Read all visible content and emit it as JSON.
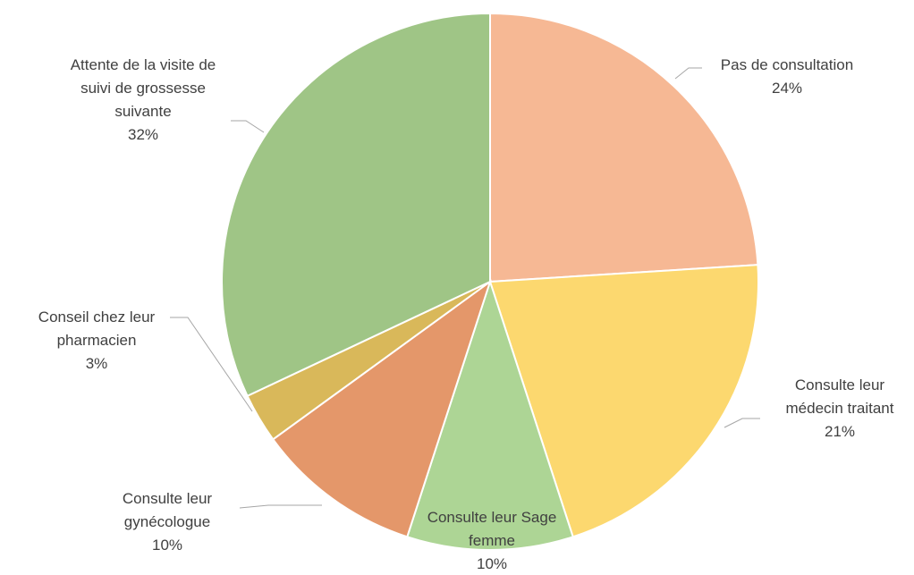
{
  "chart_data": {
    "type": "pie",
    "categories": [
      "Pas de consultation",
      "Consulte leur médecin traitant",
      "Consulte leur Sage femme",
      "Consulte leur gynécologue",
      "Conseil chez leur pharmacien",
      "Attente de la visite de suivi de grossesse suivante"
    ],
    "values": [
      24,
      21,
      10,
      10,
      3,
      32
    ],
    "value_labels": [
      "24%",
      "21%",
      "10%",
      "10%",
      "3%",
      "32%"
    ],
    "colors": [
      "#f6b894",
      "#fcd86f",
      "#add595",
      "#e4976a",
      "#d9b85a",
      "#9fc586"
    ]
  }
}
